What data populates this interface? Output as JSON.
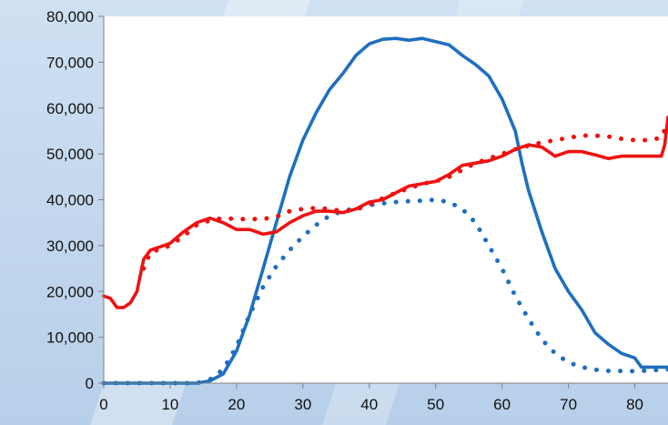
{
  "chart_data": {
    "type": "line",
    "xlim": [
      0,
      85
    ],
    "ylim": [
      0,
      80000
    ],
    "x_ticks": [
      0,
      10,
      20,
      30,
      40,
      50,
      60,
      70,
      80
    ],
    "y_ticks": [
      0,
      10000,
      20000,
      30000,
      40000,
      50000,
      60000,
      70000,
      80000
    ],
    "x_tick_labels": [
      "0",
      "10",
      "20",
      "30",
      "40",
      "50",
      "60",
      "70",
      "80"
    ],
    "y_tick_labels": [
      "0",
      "10,000",
      "20,000",
      "30,000",
      "40,000",
      "50,000",
      "60,000",
      "70,000",
      "80,000"
    ],
    "grid": false,
    "legend": "none",
    "series": [
      {
        "color": "#1f6fbf",
        "style": "solid",
        "points": [
          [
            0,
            0
          ],
          [
            14,
            0
          ],
          [
            16,
            500
          ],
          [
            18,
            2000
          ],
          [
            20,
            7000
          ],
          [
            22,
            15000
          ],
          [
            24,
            25000
          ],
          [
            26,
            35000
          ],
          [
            28,
            45000
          ],
          [
            30,
            53000
          ],
          [
            32,
            59000
          ],
          [
            34,
            64000
          ],
          [
            36,
            67500
          ],
          [
            38,
            71500
          ],
          [
            40,
            74000
          ],
          [
            42,
            75000
          ],
          [
            44,
            75200
          ],
          [
            46,
            74800
          ],
          [
            48,
            75200
          ],
          [
            50,
            74500
          ],
          [
            52,
            73800
          ],
          [
            54,
            71500
          ],
          [
            56,
            69500
          ],
          [
            58,
            67000
          ],
          [
            60,
            62000
          ],
          [
            62,
            55000
          ],
          [
            63,
            48000
          ],
          [
            64,
            42000
          ],
          [
            66,
            33000
          ],
          [
            68,
            25000
          ],
          [
            70,
            20000
          ],
          [
            72,
            16000
          ],
          [
            74,
            11000
          ],
          [
            76,
            8500
          ],
          [
            78,
            6500
          ],
          [
            80,
            5500
          ],
          [
            81,
            3500
          ],
          [
            85,
            3500
          ]
        ]
      },
      {
        "color": "#1f6fbf",
        "style": "dotted",
        "points": [
          [
            0,
            0
          ],
          [
            14,
            0
          ],
          [
            16,
            800
          ],
          [
            18,
            3000
          ],
          [
            20,
            8000
          ],
          [
            22,
            15000
          ],
          [
            24,
            21000
          ],
          [
            26,
            25500
          ],
          [
            28,
            29000
          ],
          [
            30,
            32000
          ],
          [
            32,
            34500
          ],
          [
            34,
            36500
          ],
          [
            36,
            37500
          ],
          [
            38,
            38200
          ],
          [
            40,
            38800
          ],
          [
            42,
            39200
          ],
          [
            44,
            39500
          ],
          [
            46,
            39700
          ],
          [
            48,
            39800
          ],
          [
            50,
            40000
          ],
          [
            52,
            39500
          ],
          [
            54,
            38000
          ],
          [
            56,
            35000
          ],
          [
            58,
            30000
          ],
          [
            60,
            25000
          ],
          [
            62,
            19000
          ],
          [
            64,
            14000
          ],
          [
            66,
            9500
          ],
          [
            68,
            6500
          ],
          [
            70,
            4500
          ],
          [
            72,
            3500
          ],
          [
            75,
            2700
          ],
          [
            80,
            2600
          ],
          [
            85,
            3000
          ]
        ]
      },
      {
        "color": "#ee1111",
        "style": "solid",
        "points": [
          [
            0,
            19000
          ],
          [
            1,
            18500
          ],
          [
            2,
            16500
          ],
          [
            3,
            16500
          ],
          [
            4,
            17500
          ],
          [
            5,
            20000
          ],
          [
            6,
            27000
          ],
          [
            7,
            29000
          ],
          [
            8,
            29500
          ],
          [
            10,
            30500
          ],
          [
            12,
            33000
          ],
          [
            14,
            35000
          ],
          [
            16,
            36000
          ],
          [
            18,
            35000
          ],
          [
            20,
            33500
          ],
          [
            22,
            33500
          ],
          [
            24,
            32500
          ],
          [
            26,
            33000
          ],
          [
            28,
            35000
          ],
          [
            30,
            36500
          ],
          [
            32,
            37500
          ],
          [
            34,
            37500
          ],
          [
            36,
            37200
          ],
          [
            38,
            38000
          ],
          [
            40,
            39500
          ],
          [
            42,
            40000
          ],
          [
            44,
            41500
          ],
          [
            46,
            43000
          ],
          [
            48,
            43500
          ],
          [
            50,
            44000
          ],
          [
            52,
            45500
          ],
          [
            54,
            47500
          ],
          [
            56,
            48000
          ],
          [
            58,
            48500
          ],
          [
            60,
            49500
          ],
          [
            62,
            51000
          ],
          [
            64,
            52000
          ],
          [
            66,
            51500
          ],
          [
            68,
            49500
          ],
          [
            70,
            50500
          ],
          [
            72,
            50500
          ],
          [
            74,
            49800
          ],
          [
            76,
            49000
          ],
          [
            78,
            49500
          ],
          [
            80,
            49500
          ],
          [
            82,
            49500
          ],
          [
            84,
            49500
          ],
          [
            84.5,
            52000
          ],
          [
            85,
            58000
          ]
        ]
      },
      {
        "color": "#ee1111",
        "style": "dotted",
        "points": [
          [
            6,
            25000
          ],
          [
            7,
            28500
          ],
          [
            8,
            29000
          ],
          [
            10,
            30000
          ],
          [
            12,
            32000
          ],
          [
            14,
            34500
          ],
          [
            16,
            35500
          ],
          [
            18,
            36000
          ],
          [
            20,
            35800
          ],
          [
            22,
            35800
          ],
          [
            24,
            35800
          ],
          [
            26,
            36300
          ],
          [
            28,
            37500
          ],
          [
            30,
            38000
          ],
          [
            32,
            38200
          ],
          [
            34,
            38000
          ],
          [
            36,
            37500
          ],
          [
            38,
            37800
          ],
          [
            40,
            39000
          ],
          [
            42,
            40300
          ],
          [
            44,
            41500
          ],
          [
            46,
            42500
          ],
          [
            48,
            43500
          ],
          [
            50,
            44000
          ],
          [
            52,
            45000
          ],
          [
            54,
            46500
          ],
          [
            56,
            48000
          ],
          [
            58,
            49000
          ],
          [
            60,
            50000
          ],
          [
            62,
            51000
          ],
          [
            64,
            51800
          ],
          [
            66,
            52500
          ],
          [
            68,
            53000
          ],
          [
            70,
            53500
          ],
          [
            72,
            54000
          ],
          [
            74,
            54000
          ],
          [
            76,
            53800
          ],
          [
            78,
            53300
          ],
          [
            80,
            53000
          ],
          [
            82,
            53000
          ],
          [
            84,
            53500
          ],
          [
            85,
            57000
          ]
        ]
      }
    ]
  }
}
